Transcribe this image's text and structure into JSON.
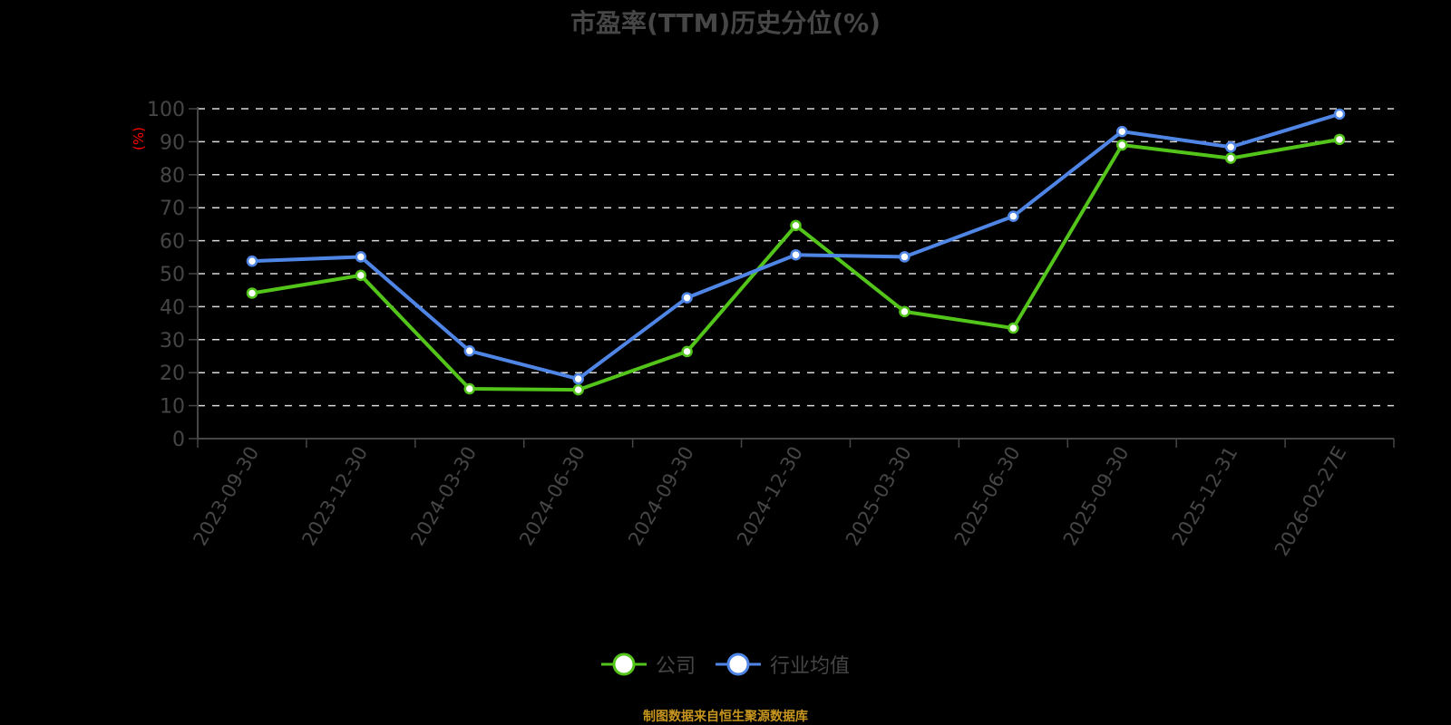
{
  "title": "市盈率(TTM)历史分位(%)",
  "footer": "制图数据来自恒生聚源数据库",
  "colors": {
    "background": "#000000",
    "company": "#52c41a",
    "industry": "#4f86e6",
    "axis": "#464646",
    "grid": "#d9d9d9",
    "tick_text": "#464646",
    "unit_label": "#ff0000",
    "footer": "#c8961e"
  },
  "legend": [
    {
      "name": "公司",
      "color": "#52c41a",
      "icon": "circle-line-icon"
    },
    {
      "name": "行业均值",
      "color": "#4f86e6",
      "icon": "circle-line-icon"
    }
  ],
  "chart_data": {
    "type": "line",
    "title": "市盈率(TTM)历史分位(%)",
    "xlabel": "",
    "ylabel": "(%)",
    "ylim": [
      0,
      100
    ],
    "yticks": [
      0,
      10,
      20,
      30,
      40,
      50,
      60,
      70,
      80,
      90,
      100
    ],
    "grid": true,
    "grid_style": "dashed",
    "legend_position": "bottom",
    "categories": [
      "2023-09-30",
      "2023-12-30",
      "2024-03-30",
      "2024-06-30",
      "2024-09-30",
      "2024-12-30",
      "2025-03-30",
      "2025-06-30",
      "2025-09-30",
      "2025-12-31",
      "2026-02-27E"
    ],
    "series": [
      {
        "name": "公司",
        "color": "#52c41a",
        "values": [
          44.1,
          49.5,
          15.1,
          14.8,
          26.4,
          64.6,
          38.5,
          33.5,
          89.0,
          85.0,
          90.7
        ]
      },
      {
        "name": "行业均值",
        "color": "#4f86e6",
        "values": [
          53.8,
          55.1,
          26.6,
          18.1,
          42.7,
          55.7,
          55.1,
          67.4,
          93.1,
          88.4,
          98.4
        ]
      }
    ]
  }
}
